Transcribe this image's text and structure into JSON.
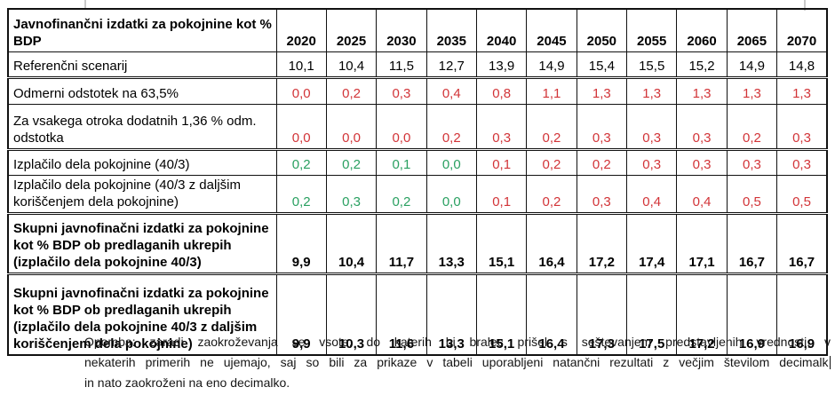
{
  "table": {
    "header": {
      "title": "Javnofinančni izdatki za pokojnine kot % BDP",
      "years": [
        "2020",
        "2025",
        "2030",
        "2035",
        "2040",
        "2045",
        "2050",
        "2055",
        "2060",
        "2065",
        "2070"
      ]
    },
    "rows": [
      {
        "label": "Referenčni scenarij",
        "bold": false,
        "group_end": true,
        "values": [
          "10,1",
          "10,4",
          "11,5",
          "12,7",
          "13,9",
          "14,9",
          "15,4",
          "15,5",
          "15,2",
          "14,9",
          "14,8"
        ],
        "value_colors": [
          "black",
          "black",
          "black",
          "black",
          "black",
          "black",
          "black",
          "black",
          "black",
          "black",
          "black"
        ]
      },
      {
        "label": "Odmerni odstotek na 63,5%",
        "bold": false,
        "group_end": false,
        "values": [
          "0,0",
          "0,2",
          "0,3",
          "0,4",
          "0,8",
          "1,1",
          "1,3",
          "1,3",
          "1,3",
          "1,3",
          "1,3"
        ],
        "value_colors": [
          "red",
          "red",
          "red",
          "red",
          "red",
          "red",
          "red",
          "red",
          "red",
          "red",
          "red"
        ]
      },
      {
        "label": "Za vsakega otroka dodatnih 1,36 % odm. odstotka",
        "bold": false,
        "group_end": true,
        "values": [
          "0,0",
          "0,0",
          "0,0",
          "0,2",
          "0,3",
          "0,2",
          "0,3",
          "0,3",
          "0,3",
          "0,2",
          "0,3"
        ],
        "value_colors": [
          "red",
          "red",
          "red",
          "red",
          "red",
          "red",
          "red",
          "red",
          "red",
          "red",
          "red"
        ]
      },
      {
        "label": "Izplačilo dela pokojnine (40/3)",
        "bold": false,
        "group_end": false,
        "values": [
          "0,2",
          "0,2",
          "0,1",
          "0,0",
          "0,1",
          "0,2",
          "0,2",
          "0,3",
          "0,3",
          "0,3",
          "0,3"
        ],
        "value_colors": [
          "green",
          "green",
          "green",
          "green",
          "red",
          "red",
          "red",
          "red",
          "red",
          "red",
          "red"
        ]
      },
      {
        "label": "Izplačilo dela pokojnine (40/3 z daljšim koriščenjem dela pokojnine)",
        "bold": false,
        "group_end": true,
        "values": [
          "0,2",
          "0,3",
          "0,2",
          "0,0",
          "0,1",
          "0,2",
          "0,3",
          "0,4",
          "0,4",
          "0,5",
          "0,5"
        ],
        "value_colors": [
          "green",
          "green",
          "green",
          "green",
          "red",
          "red",
          "red",
          "red",
          "red",
          "red",
          "red"
        ]
      },
      {
        "label": "Skupni javnofinačni izdatki za pokojnine kot % BDP ob predlaganih ukrepih (izplačilo dela pokojnine 40/3)",
        "bold": true,
        "group_end": true,
        "values": [
          "9,9",
          "10,4",
          "11,7",
          "13,3",
          "15,1",
          "16,4",
          "17,2",
          "17,4",
          "17,1",
          "16,7",
          "16,7"
        ],
        "value_colors": [
          "black",
          "black",
          "black",
          "black",
          "black",
          "black",
          "black",
          "black",
          "black",
          "black",
          "black"
        ]
      },
      {
        "label": "Skupni javnofinačni izdatki za pokojnine kot % BDP ob predlaganih ukrepih (izplačilo dela pokojnine 40/3 z daljšim koriščenjem dela pokojnine)",
        "bold": true,
        "group_end": false,
        "values": [
          "9,9",
          "10,3",
          "11,6",
          "13,3",
          "15,1",
          "16,4",
          "17,3",
          "17,5",
          "17,2",
          "16,9",
          "16,9"
        ],
        "value_colors": [
          "black",
          "black",
          "black",
          "black",
          "black",
          "black",
          "black",
          "black",
          "black",
          "black",
          "black"
        ]
      }
    ]
  },
  "note": {
    "lines": [
      "Opomba: zaradi zaokroževanja se vsote, do katerih bi bralec prišel s seštevanjem predstavljenih vrednosti, v",
      "nekaterih primerih ne ujemajo, saj so bili za prikaze v tabeli uporabljeni natančni rezultati z večjim številom decimalk",
      "in nato zaokroženi na eno decimalko."
    ],
    "cursor_line_index": 1
  },
  "colors": {
    "red": "#d23438",
    "green": "#2aa061",
    "black": "#000000",
    "border": "#111111"
  }
}
